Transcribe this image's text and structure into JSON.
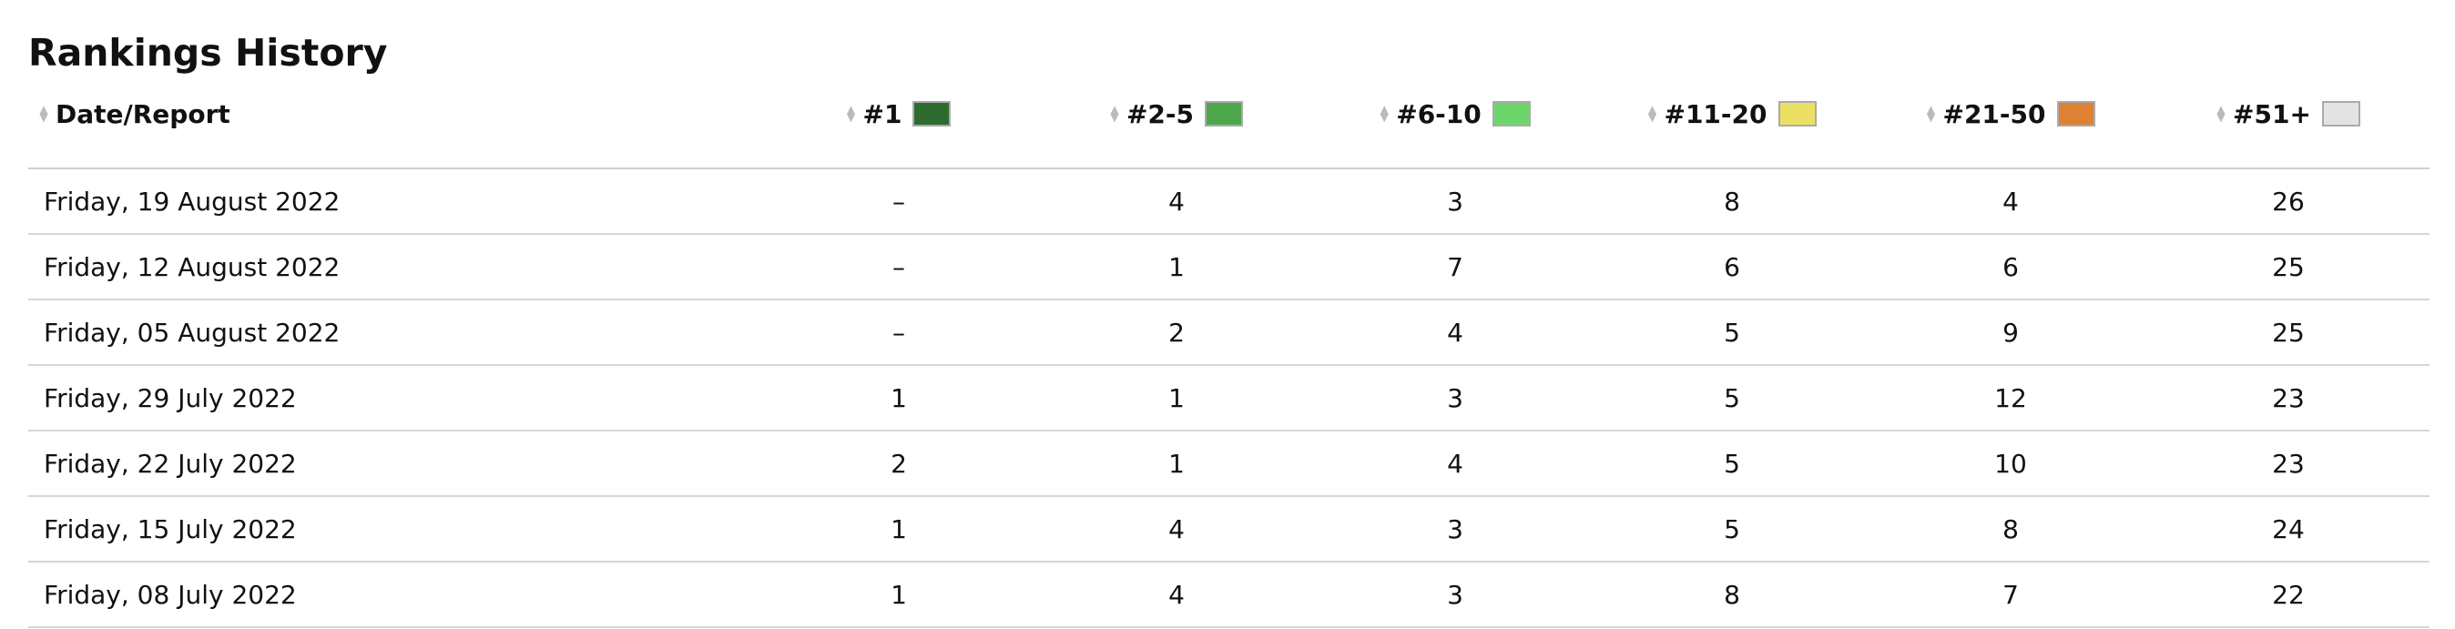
{
  "header": {
    "title": "Rankings History"
  },
  "table": {
    "columns": [
      {
        "label": "Date/Report"
      },
      {
        "label": "#1",
        "color": "#2e6b2e"
      },
      {
        "label": "#2-5",
        "color": "#4ea64a"
      },
      {
        "label": "#6-10",
        "color": "#6dd66b"
      },
      {
        "label": "#11-20",
        "color": "#ece064"
      },
      {
        "label": "#21-50",
        "color": "#dc8232"
      },
      {
        "label": "#51+",
        "color": "#e3e3e3"
      }
    ],
    "rows": [
      [
        "Friday, 19 August 2022",
        "–",
        4,
        3,
        8,
        4,
        26
      ],
      [
        "Friday, 12 August 2022",
        "–",
        1,
        7,
        6,
        6,
        25
      ],
      [
        "Friday, 05 August 2022",
        "–",
        2,
        4,
        5,
        9,
        25
      ],
      [
        "Friday, 29 July 2022",
        1,
        1,
        3,
        5,
        12,
        23
      ],
      [
        "Friday, 22 July 2022",
        2,
        1,
        4,
        5,
        10,
        23
      ],
      [
        "Friday, 15 July 2022",
        1,
        4,
        3,
        5,
        8,
        24
      ],
      [
        "Friday, 08 July 2022",
        1,
        4,
        3,
        8,
        7,
        22
      ]
    ]
  }
}
